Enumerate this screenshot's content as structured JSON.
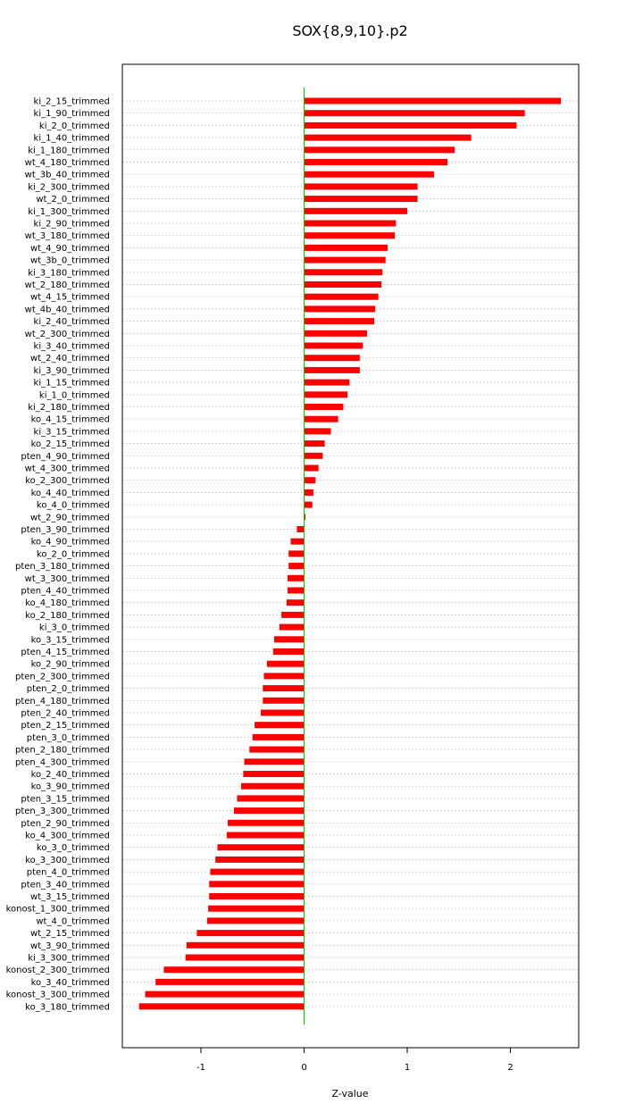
{
  "chart_data": {
    "type": "bar",
    "orientation": "horizontal",
    "title": "SOX{8,9,10}.p2",
    "xlabel": "Z-value",
    "ylabel": "",
    "xlim": [
      -1.78,
      2.65
    ],
    "xticks": [
      -1,
      0,
      1,
      2
    ],
    "grid": true,
    "bar_color": "#ff0000",
    "zero_line_color": "#00cc00",
    "categories": [
      "ki_2_15_trimmed",
      "ki_1_90_trimmed",
      "ki_2_0_trimmed",
      "ki_1_40_trimmed",
      "ki_1_180_trimmed",
      "wt_4_180_trimmed",
      "wt_3b_40_trimmed",
      "ki_2_300_trimmed",
      "wt_2_0_trimmed",
      "ki_1_300_trimmed",
      "ki_2_90_trimmed",
      "wt_3_180_trimmed",
      "wt_4_90_trimmed",
      "wt_3b_0_trimmed",
      "ki_3_180_trimmed",
      "wt_2_180_trimmed",
      "wt_4_15_trimmed",
      "wt_4b_40_trimmed",
      "ki_2_40_trimmed",
      "wt_2_300_trimmed",
      "ki_3_40_trimmed",
      "wt_2_40_trimmed",
      "ki_3_90_trimmed",
      "ki_1_15_trimmed",
      "ki_1_0_trimmed",
      "ki_2_180_trimmed",
      "ko_4_15_trimmed",
      "ki_3_15_trimmed",
      "ko_2_15_trimmed",
      "pten_4_90_trimmed",
      "wt_4_300_trimmed",
      "ko_2_300_trimmed",
      "ko_4_40_trimmed",
      "ko_4_0_trimmed",
      "wt_2_90_trimmed",
      "pten_3_90_trimmed",
      "ko_4_90_trimmed",
      "ko_2_0_trimmed",
      "pten_3_180_trimmed",
      "wt_3_300_trimmed",
      "pten_4_40_trimmed",
      "ko_4_180_trimmed",
      "ko_2_180_trimmed",
      "ki_3_0_trimmed",
      "ko_3_15_trimmed",
      "pten_4_15_trimmed",
      "ko_2_90_trimmed",
      "pten_2_300_trimmed",
      "pten_2_0_trimmed",
      "pten_4_180_trimmed",
      "pten_2_40_trimmed",
      "pten_2_15_trimmed",
      "pten_3_0_trimmed",
      "pten_2_180_trimmed",
      "pten_4_300_trimmed",
      "ko_2_40_trimmed",
      "ko_3_90_trimmed",
      "pten_3_15_trimmed",
      "pten_3_300_trimmed",
      "pten_2_90_trimmed",
      "ko_4_300_trimmed",
      "ko_3_0_trimmed",
      "ko_3_300_trimmed",
      "pten_4_0_trimmed",
      "pten_3_40_trimmed",
      "wt_3_15_trimmed",
      "konost_1_300_trimmed",
      "wt_4_0_trimmed",
      "wt_2_15_trimmed",
      "wt_3_90_trimmed",
      "ki_3_300_trimmed",
      "konost_2_300_trimmed",
      "ko_3_40_trimmed",
      "konost_3_300_trimmed",
      "ko_3_180_trimmed"
    ],
    "values": [
      2.49,
      2.14,
      2.06,
      1.62,
      1.46,
      1.39,
      1.26,
      1.1,
      1.1,
      1.0,
      0.89,
      0.88,
      0.81,
      0.79,
      0.76,
      0.75,
      0.72,
      0.69,
      0.68,
      0.61,
      0.57,
      0.54,
      0.54,
      0.44,
      0.42,
      0.38,
      0.33,
      0.26,
      0.2,
      0.18,
      0.14,
      0.11,
      0.09,
      0.08,
      0.01,
      -0.07,
      -0.13,
      -0.15,
      -0.15,
      -0.16,
      -0.16,
      -0.17,
      -0.22,
      -0.24,
      -0.29,
      -0.3,
      -0.36,
      -0.39,
      -0.4,
      -0.4,
      -0.42,
      -0.48,
      -0.5,
      -0.53,
      -0.58,
      -0.59,
      -0.61,
      -0.65,
      -0.68,
      -0.74,
      -0.75,
      -0.84,
      -0.86,
      -0.91,
      -0.92,
      -0.92,
      -0.93,
      -0.94,
      -1.04,
      -1.14,
      -1.15,
      -1.36,
      -1.44,
      -1.54,
      -1.6
    ]
  }
}
